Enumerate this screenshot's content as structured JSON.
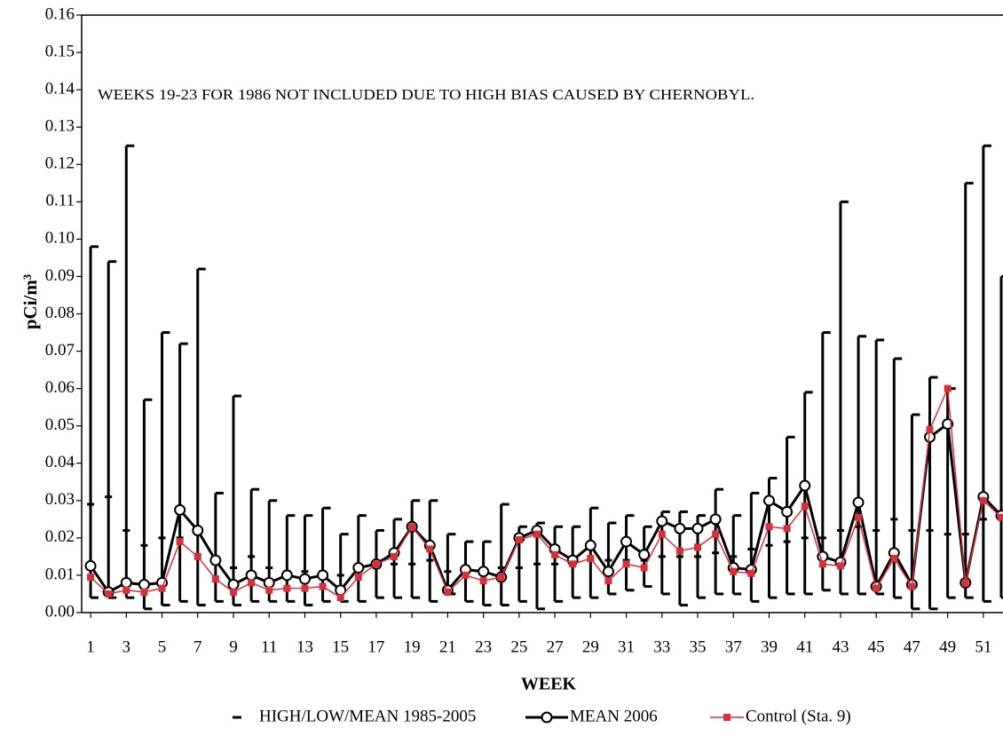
{
  "chart_data": {
    "type": "line",
    "annotation": "WEEKS 19-23 FOR 1986 NOT INCLUDED DUE TO HIGH BIAS CAUSED BY CHERNOBYL.",
    "x_label": "WEEK",
    "y_label": "pCi/m³",
    "x": [
      1,
      2,
      3,
      4,
      5,
      6,
      7,
      8,
      9,
      10,
      11,
      12,
      13,
      14,
      15,
      16,
      17,
      18,
      19,
      20,
      21,
      22,
      23,
      24,
      25,
      26,
      27,
      28,
      29,
      30,
      31,
      32,
      33,
      34,
      35,
      36,
      37,
      38,
      39,
      40,
      41,
      42,
      43,
      44,
      45,
      46,
      47,
      48,
      49,
      50,
      51,
      52
    ],
    "xlim": [
      0.5,
      52.1
    ],
    "xticks": [
      1,
      3,
      5,
      7,
      9,
      11,
      13,
      15,
      17,
      19,
      21,
      23,
      25,
      27,
      29,
      31,
      33,
      35,
      37,
      39,
      41,
      43,
      45,
      47,
      49,
      51
    ],
    "ylim": [
      0,
      0.16
    ],
    "yticks": [
      {
        "value": 0,
        "label": "0.00"
      },
      0.01,
      0.02,
      0.03,
      0.04,
      0.05,
      0.06,
      0.07,
      0.08,
      0.09,
      {
        "value": 0.1,
        "label": "0.10"
      },
      0.11,
      0.12,
      0.13,
      0.14,
      0.15,
      0.16
    ],
    "series": [
      {
        "name": "HIGH/LOW/MEAN 1985-2005",
        "color": "#000000",
        "values": [
          0.029,
          0.031,
          0.022,
          0.018,
          0.02,
          0.02,
          0.021,
          0.013,
          0.012,
          0.015,
          0.012,
          0.011,
          0.011,
          0.011,
          0.01,
          0.011,
          0.012,
          0.013,
          0.013,
          0.014,
          0.011,
          0.011,
          0.011,
          0.012,
          0.012,
          0.013,
          0.013,
          0.013,
          0.014,
          0.014,
          0.014,
          0.014,
          0.015,
          0.015,
          0.015,
          0.016,
          0.015,
          0.017,
          0.018,
          0.019,
          0.02,
          0.02,
          0.022,
          0.023,
          0.022,
          0.025,
          0.022,
          0.022,
          0.021,
          0.021,
          0.025,
          0.025
        ],
        "high": [
          0.098,
          0.094,
          0.125,
          0.057,
          0.075,
          0.072,
          0.092,
          0.032,
          0.058,
          0.033,
          0.03,
          0.026,
          0.026,
          0.028,
          0.021,
          0.026,
          0.022,
          0.025,
          0.03,
          0.03,
          0.021,
          0.019,
          0.019,
          0.029,
          0.023,
          0.024,
          0.023,
          0.023,
          0.028,
          0.024,
          0.026,
          0.023,
          0.027,
          0.027,
          0.026,
          0.033,
          0.026,
          0.032,
          0.036,
          0.047,
          0.059,
          0.075,
          0.11,
          0.074,
          0.073,
          0.068,
          0.053,
          0.063,
          0.06,
          0.115,
          0.125,
          0.09
        ],
        "low": [
          0.004,
          0.004,
          0.004,
          0.001,
          0.002,
          0.003,
          0.002,
          0.003,
          0.002,
          0.003,
          0.003,
          0.003,
          0.002,
          0.003,
          0.003,
          0.003,
          0.004,
          0.004,
          0.004,
          0.003,
          0.005,
          0.003,
          0.002,
          0.002,
          0.003,
          0.001,
          0.003,
          0.004,
          0.004,
          0.005,
          0.006,
          0.007,
          0.005,
          0.002,
          0.004,
          0.005,
          0.005,
          0.003,
          0.004,
          0.005,
          0.005,
          0.006,
          0.005,
          0.005,
          0.005,
          0.004,
          0.001,
          0.001,
          0.004,
          0.004,
          0.003,
          0.004
        ]
      },
      {
        "name": "MEAN 2006",
        "color": "#000000",
        "values": [
          0.0125,
          0.0055,
          0.008,
          0.0075,
          0.008,
          0.0275,
          0.022,
          0.014,
          0.0075,
          0.01,
          0.008,
          0.01,
          0.009,
          0.01,
          0.006,
          0.012,
          0.013,
          0.016,
          0.023,
          0.018,
          0.006,
          0.0115,
          0.011,
          0.0095,
          0.02,
          0.022,
          0.017,
          0.014,
          0.018,
          0.011,
          0.019,
          0.0155,
          0.0245,
          0.0225,
          0.0225,
          0.025,
          0.012,
          0.0115,
          0.03,
          0.027,
          0.034,
          0.015,
          0.0135,
          0.0295,
          0.007,
          0.016,
          0.0075,
          0.047,
          0.0505,
          0.008,
          0.031,
          0.026
        ]
      },
      {
        "name": "Control (Sta. 9)",
        "color": "#d6303c",
        "values": [
          0.0095,
          0.005,
          0.006,
          0.0055,
          0.0065,
          0.019,
          0.015,
          0.009,
          0.0055,
          0.008,
          0.006,
          0.0065,
          0.0065,
          0.007,
          0.004,
          0.0095,
          0.013,
          0.015,
          0.023,
          0.017,
          0.0055,
          0.01,
          0.0085,
          0.0095,
          0.0195,
          0.021,
          0.0155,
          0.013,
          0.0145,
          0.0085,
          0.013,
          0.012,
          0.021,
          0.0165,
          0.0175,
          0.021,
          0.011,
          0.0105,
          0.023,
          0.0225,
          0.0285,
          0.013,
          0.0125,
          0.0255,
          0.0065,
          0.0145,
          0.007,
          0.049,
          0.06,
          0.008,
          0.03,
          0.0255
        ]
      }
    ]
  }
}
